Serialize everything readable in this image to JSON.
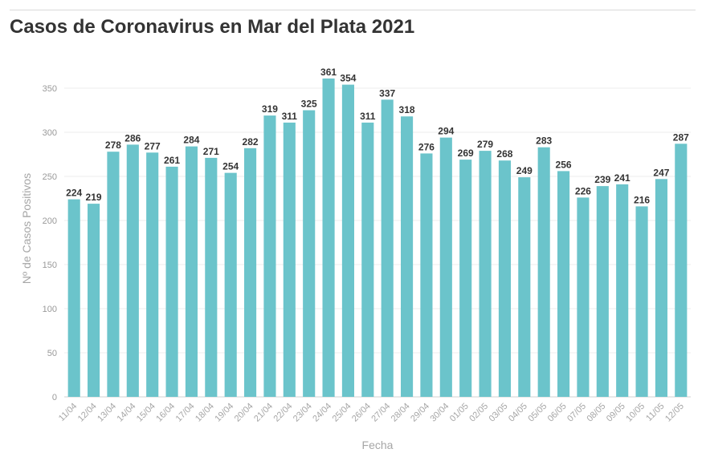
{
  "colors": {
    "bar": "#6bc4cb",
    "grid": "#ececec",
    "axis_text": "#999999",
    "label_text": "#333333"
  },
  "chart_data": {
    "type": "bar",
    "title": "Casos de Coronavirus en Mar del Plata 2021",
    "xlabel": "Fecha",
    "ylabel": "Nº de Casos Positivos",
    "ylim": [
      0,
      380
    ],
    "yticks": [
      0,
      50,
      100,
      150,
      200,
      250,
      300,
      350
    ],
    "grid": true,
    "categories": [
      "11/04",
      "12/04",
      "13/04",
      "14/04",
      "15/04",
      "16/04",
      "17/04",
      "18/04",
      "19/04",
      "20/04",
      "21/04",
      "22/04",
      "23/04",
      "24/04",
      "25/04",
      "26/04",
      "27/04",
      "28/04",
      "29/04",
      "30/04",
      "01/05",
      "02/05",
      "03/05",
      "04/05",
      "05/05",
      "06/05",
      "07/05",
      "08/05",
      "09/05",
      "10/05",
      "11/05",
      "12/05"
    ],
    "values": [
      224,
      219,
      278,
      286,
      277,
      261,
      284,
      271,
      254,
      282,
      319,
      311,
      325,
      361,
      354,
      311,
      337,
      318,
      276,
      294,
      269,
      279,
      268,
      249,
      283,
      256,
      226,
      239,
      241,
      216,
      247,
      287
    ]
  }
}
